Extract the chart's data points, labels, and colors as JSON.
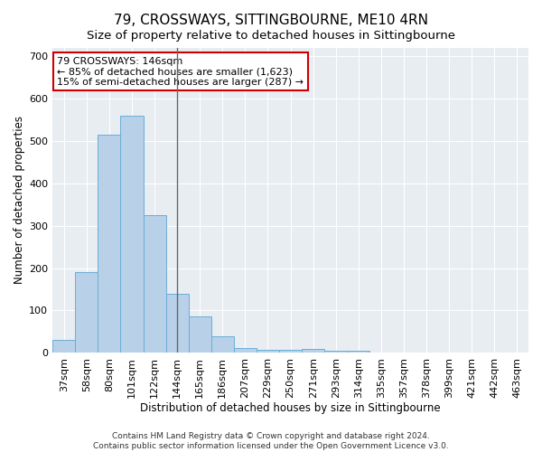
{
  "title": "79, CROSSWAYS, SITTINGBOURNE, ME10 4RN",
  "subtitle": "Size of property relative to detached houses in Sittingbourne",
  "xlabel": "Distribution of detached houses by size in Sittingbourne",
  "ylabel": "Number of detached properties",
  "categories": [
    "37sqm",
    "58sqm",
    "80sqm",
    "101sqm",
    "122sqm",
    "144sqm",
    "165sqm",
    "186sqm",
    "207sqm",
    "229sqm",
    "250sqm",
    "271sqm",
    "293sqm",
    "314sqm",
    "335sqm",
    "357sqm",
    "378sqm",
    "399sqm",
    "421sqm",
    "442sqm",
    "463sqm"
  ],
  "values": [
    30,
    190,
    515,
    560,
    325,
    140,
    85,
    40,
    12,
    8,
    8,
    10,
    5,
    5,
    0,
    0,
    0,
    0,
    0,
    0,
    0
  ],
  "bar_color": "#b8d0e8",
  "bar_edge_color": "#6aaed6",
  "marker_index": 5,
  "marker_color": "#666666",
  "annotation_line1": "79 CROSSWAYS: 146sqm",
  "annotation_line2": "← 85% of detached houses are smaller (1,623)",
  "annotation_line3": "15% of semi-detached houses are larger (287) →",
  "annotation_box_color": "#ffffff",
  "annotation_box_edge_color": "#cc0000",
  "ylim": [
    0,
    720
  ],
  "yticks": [
    0,
    100,
    200,
    300,
    400,
    500,
    600,
    700
  ],
  "bg_color": "#e8edf2",
  "grid_color": "#ffffff",
  "footer_line1": "Contains HM Land Registry data © Crown copyright and database right 2024.",
  "footer_line2": "Contains public sector information licensed under the Open Government Licence v3.0.",
  "title_fontsize": 11,
  "subtitle_fontsize": 9.5,
  "xlabel_fontsize": 8.5,
  "ylabel_fontsize": 8.5,
  "tick_fontsize": 8,
  "footer_fontsize": 6.5,
  "annot_fontsize": 8
}
